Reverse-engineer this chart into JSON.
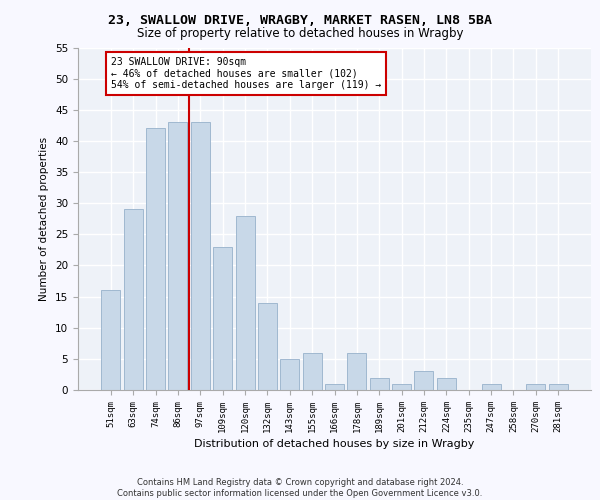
{
  "title1": "23, SWALLOW DRIVE, WRAGBY, MARKET RASEN, LN8 5BA",
  "title2": "Size of property relative to detached houses in Wragby",
  "xlabel": "Distribution of detached houses by size in Wragby",
  "ylabel": "Number of detached properties",
  "categories": [
    "51sqm",
    "63sqm",
    "74sqm",
    "86sqm",
    "97sqm",
    "109sqm",
    "120sqm",
    "132sqm",
    "143sqm",
    "155sqm",
    "166sqm",
    "178sqm",
    "189sqm",
    "201sqm",
    "212sqm",
    "224sqm",
    "235sqm",
    "247sqm",
    "258sqm",
    "270sqm",
    "281sqm"
  ],
  "values": [
    16,
    29,
    42,
    43,
    43,
    23,
    28,
    14,
    5,
    6,
    1,
    6,
    2,
    1,
    3,
    2,
    0,
    1,
    0,
    1,
    1
  ],
  "bar_color": "#c8d8e8",
  "bar_edge_color": "#a0b8d0",
  "vline_color": "#cc0000",
  "annotation_text": "23 SWALLOW DRIVE: 90sqm\n← 46% of detached houses are smaller (102)\n54% of semi-detached houses are larger (119) →",
  "annotation_box_color": "#ffffff",
  "annotation_box_edge_color": "#cc0000",
  "ylim": [
    0,
    55
  ],
  "yticks": [
    0,
    5,
    10,
    15,
    20,
    25,
    30,
    35,
    40,
    45,
    50,
    55
  ],
  "background_color": "#eef2f8",
  "grid_color": "#ffffff",
  "fig_facecolor": "#f8f8ff",
  "footer": "Contains HM Land Registry data © Crown copyright and database right 2024.\nContains public sector information licensed under the Open Government Licence v3.0."
}
